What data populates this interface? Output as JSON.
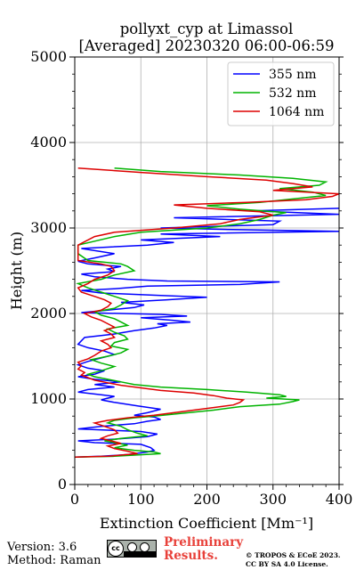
{
  "chart_data": {
    "type": "line",
    "title_line1": "pollyxt_cyp at Limassol",
    "title_line2": "[Averaged] 20230320 06:00-06:59",
    "xlabel": "Extinction Coefficient [Mm⁻¹]",
    "ylabel": "Height (m)",
    "xlim": [
      0,
      400
    ],
    "ylim": [
      0,
      5000
    ],
    "xticks": [
      "0",
      "100",
      "200",
      "300",
      "400"
    ],
    "yticks": [
      "0",
      "1000",
      "2000",
      "3000",
      "4000",
      "5000"
    ],
    "grid": true,
    "legend_position": "top-right",
    "series": [
      {
        "name": "355 nm",
        "color": "#0000ff",
        "points": [
          [
            0,
            320
          ],
          [
            40,
            330
          ],
          [
            80,
            350
          ],
          [
            110,
            380
          ],
          [
            120,
            400
          ],
          [
            115,
            430
          ],
          [
            100,
            470
          ],
          [
            30,
            490
          ],
          [
            5,
            510
          ],
          [
            60,
            530
          ],
          [
            110,
            560
          ],
          [
            125,
            590
          ],
          [
            100,
            620
          ],
          [
            5,
            650
          ],
          [
            40,
            680
          ],
          [
            90,
            710
          ],
          [
            110,
            740
          ],
          [
            130,
            760
          ],
          [
            120,
            790
          ],
          [
            90,
            810
          ],
          [
            110,
            840
          ],
          [
            130,
            880
          ],
          [
            95,
            920
          ],
          [
            60,
            960
          ],
          [
            40,
            990
          ],
          [
            50,
            1010
          ],
          [
            60,
            1030
          ],
          [
            40,
            1050
          ],
          [
            5,
            1080
          ],
          [
            20,
            1110
          ],
          [
            60,
            1140
          ],
          [
            30,
            1170
          ],
          [
            70,
            1200
          ],
          [
            30,
            1230
          ],
          [
            5,
            1260
          ],
          [
            30,
            1290
          ],
          [
            45,
            1330
          ],
          [
            20,
            1360
          ],
          [
            5,
            1400
          ],
          [
            20,
            1440
          ],
          [
            40,
            1480
          ],
          [
            60,
            1520
          ],
          [
            45,
            1560
          ],
          [
            20,
            1600
          ],
          [
            5,
            1640
          ],
          [
            10,
            1680
          ],
          [
            15,
            1720
          ],
          [
            60,
            1760
          ],
          [
            90,
            1800
          ],
          [
            120,
            1830
          ],
          [
            140,
            1860
          ],
          [
            125,
            1880
          ],
          [
            175,
            1900
          ],
          [
            150,
            1920
          ],
          [
            100,
            1950
          ],
          [
            170,
            1970
          ],
          [
            130,
            1990
          ],
          [
            10,
            2010
          ],
          [
            50,
            2040
          ],
          [
            90,
            2070
          ],
          [
            105,
            2100
          ],
          [
            70,
            2130
          ],
          [
            140,
            2160
          ],
          [
            200,
            2190
          ],
          [
            130,
            2210
          ],
          [
            40,
            2240
          ],
          [
            10,
            2270
          ],
          [
            60,
            2290
          ],
          [
            110,
            2320
          ],
          [
            250,
            2340
          ],
          [
            310,
            2370
          ],
          [
            140,
            2380
          ],
          [
            80,
            2400
          ],
          [
            30,
            2430
          ],
          [
            10,
            2460
          ],
          [
            60,
            2490
          ],
          [
            50,
            2520
          ],
          [
            70,
            2550
          ],
          [
            20,
            2580
          ],
          [
            5,
            2610
          ],
          [
            30,
            2650
          ],
          [
            60,
            2700
          ],
          [
            10,
            2760
          ],
          [
            110,
            2800
          ],
          [
            150,
            2830
          ],
          [
            100,
            2860
          ],
          [
            220,
            2900
          ],
          [
            130,
            2930
          ],
          [
            400,
            2960
          ],
          [
            250,
            2980
          ],
          [
            130,
            3000
          ],
          [
            300,
            3040
          ],
          [
            310,
            3080
          ],
          [
            150,
            3120
          ],
          [
            400,
            3160
          ],
          [
            270,
            3200
          ],
          [
            400,
            3230
          ]
        ]
      },
      {
        "name": "532 nm",
        "color": "#00b300",
        "points": [
          [
            0,
            320
          ],
          [
            60,
            330
          ],
          [
            130,
            360
          ],
          [
            120,
            380
          ],
          [
            90,
            400
          ],
          [
            60,
            430
          ],
          [
            80,
            460
          ],
          [
            60,
            490
          ],
          [
            45,
            510
          ],
          [
            70,
            540
          ],
          [
            110,
            570
          ],
          [
            95,
            600
          ],
          [
            80,
            640
          ],
          [
            70,
            680
          ],
          [
            50,
            720
          ],
          [
            60,
            750
          ],
          [
            90,
            780
          ],
          [
            120,
            800
          ],
          [
            160,
            830
          ],
          [
            210,
            870
          ],
          [
            250,
            910
          ],
          [
            310,
            940
          ],
          [
            330,
            970
          ],
          [
            340,
            990
          ],
          [
            290,
            1010
          ],
          [
            320,
            1030
          ],
          [
            310,
            1050
          ],
          [
            260,
            1080
          ],
          [
            200,
            1110
          ],
          [
            130,
            1140
          ],
          [
            90,
            1170
          ],
          [
            70,
            1200
          ],
          [
            50,
            1230
          ],
          [
            30,
            1260
          ],
          [
            20,
            1290
          ],
          [
            40,
            1330
          ],
          [
            60,
            1380
          ],
          [
            40,
            1420
          ],
          [
            25,
            1460
          ],
          [
            50,
            1500
          ],
          [
            70,
            1540
          ],
          [
            80,
            1580
          ],
          [
            55,
            1620
          ],
          [
            60,
            1660
          ],
          [
            80,
            1700
          ],
          [
            75,
            1740
          ],
          [
            60,
            1780
          ],
          [
            50,
            1820
          ],
          [
            80,
            1860
          ],
          [
            70,
            1900
          ],
          [
            60,
            1940
          ],
          [
            40,
            1980
          ],
          [
            30,
            2020
          ],
          [
            60,
            2060
          ],
          [
            70,
            2100
          ],
          [
            80,
            2150
          ],
          [
            60,
            2200
          ],
          [
            40,
            2250
          ],
          [
            20,
            2300
          ],
          [
            5,
            2350
          ],
          [
            40,
            2400
          ],
          [
            60,
            2450
          ],
          [
            90,
            2500
          ],
          [
            80,
            2550
          ],
          [
            70,
            2580
          ],
          [
            20,
            2620
          ],
          [
            5,
            2700
          ],
          [
            5,
            2800
          ],
          [
            60,
            2900
          ],
          [
            100,
            2950
          ],
          [
            200,
            3000
          ],
          [
            250,
            3050
          ],
          [
            280,
            3100
          ],
          [
            300,
            3150
          ],
          [
            320,
            3180
          ],
          [
            250,
            3220
          ],
          [
            200,
            3260
          ],
          [
            280,
            3300
          ],
          [
            330,
            3340
          ],
          [
            380,
            3380
          ],
          [
            360,
            3420
          ],
          [
            310,
            3460
          ],
          [
            370,
            3500
          ],
          [
            380,
            3540
          ],
          [
            330,
            3580
          ],
          [
            250,
            3620
          ],
          [
            130,
            3660
          ],
          [
            60,
            3700
          ]
        ]
      },
      {
        "name": "1064 nm",
        "color": "#dd0000",
        "points": [
          [
            0,
            320
          ],
          [
            50,
            330
          ],
          [
            95,
            360
          ],
          [
            80,
            390
          ],
          [
            60,
            420
          ],
          [
            50,
            450
          ],
          [
            70,
            480
          ],
          [
            55,
            510
          ],
          [
            40,
            540
          ],
          [
            50,
            570
          ],
          [
            65,
            600
          ],
          [
            60,
            640
          ],
          [
            45,
            680
          ],
          [
            30,
            720
          ],
          [
            50,
            750
          ],
          [
            80,
            780
          ],
          [
            120,
            810
          ],
          [
            150,
            840
          ],
          [
            180,
            870
          ],
          [
            210,
            900
          ],
          [
            240,
            930
          ],
          [
            250,
            960
          ],
          [
            255,
            990
          ],
          [
            230,
            1010
          ],
          [
            210,
            1040
          ],
          [
            180,
            1070
          ],
          [
            130,
            1100
          ],
          [
            100,
            1130
          ],
          [
            70,
            1160
          ],
          [
            50,
            1190
          ],
          [
            30,
            1220
          ],
          [
            20,
            1250
          ],
          [
            10,
            1280
          ],
          [
            15,
            1310
          ],
          [
            5,
            1350
          ],
          [
            10,
            1390
          ],
          [
            5,
            1430
          ],
          [
            20,
            1470
          ],
          [
            30,
            1510
          ],
          [
            40,
            1560
          ],
          [
            55,
            1600
          ],
          [
            50,
            1640
          ],
          [
            40,
            1680
          ],
          [
            60,
            1720
          ],
          [
            55,
            1760
          ],
          [
            45,
            1800
          ],
          [
            60,
            1840
          ],
          [
            50,
            1880
          ],
          [
            40,
            1920
          ],
          [
            25,
            1960
          ],
          [
            15,
            2000
          ],
          [
            40,
            2040
          ],
          [
            50,
            2080
          ],
          [
            55,
            2120
          ],
          [
            45,
            2160
          ],
          [
            30,
            2200
          ],
          [
            10,
            2250
          ],
          [
            5,
            2300
          ],
          [
            20,
            2350
          ],
          [
            30,
            2400
          ],
          [
            50,
            2450
          ],
          [
            60,
            2500
          ],
          [
            55,
            2550
          ],
          [
            40,
            2580
          ],
          [
            5,
            2620
          ],
          [
            5,
            2700
          ],
          [
            5,
            2800
          ],
          [
            30,
            2900
          ],
          [
            60,
            2950
          ],
          [
            150,
            3000
          ],
          [
            220,
            3050
          ],
          [
            250,
            3100
          ],
          [
            300,
            3150
          ],
          [
            280,
            3190
          ],
          [
            200,
            3230
          ],
          [
            150,
            3270
          ],
          [
            260,
            3300
          ],
          [
            350,
            3330
          ],
          [
            390,
            3370
          ],
          [
            400,
            3400
          ],
          [
            300,
            3440
          ],
          [
            360,
            3480
          ],
          [
            330,
            3520
          ],
          [
            290,
            3560
          ],
          [
            200,
            3600
          ],
          [
            100,
            3650
          ],
          [
            5,
            3700
          ]
        ]
      }
    ]
  },
  "footer": {
    "version": "Version: 3.6",
    "method": "Method: Raman",
    "preliminary_line1": "Preliminary",
    "preliminary_line2": "Results.",
    "copyright_line1": "© TROPOS & ECoE 2023.",
    "copyright_line2": "CC BY SA 4.0 License.",
    "license_badge_text": "cc"
  }
}
